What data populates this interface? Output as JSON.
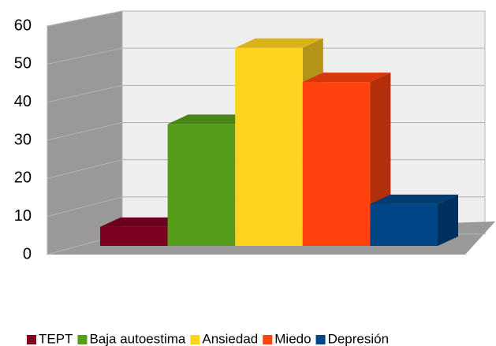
{
  "chart_data": {
    "type": "bar3d",
    "categories": [
      null
    ],
    "series": [
      {
        "name": "TEPT",
        "color": "#7e0021",
        "values": [
          5
        ]
      },
      {
        "name": "Baja autoestima",
        "color": "#579d1c",
        "values": [
          32
        ]
      },
      {
        "name": "Ansiedad",
        "color": "#ffd320",
        "values": [
          52
        ]
      },
      {
        "name": "Miedo",
        "color": "#ff420e",
        "values": [
          43
        ]
      },
      {
        "name": "Depresión",
        "color": "#004586",
        "values": [
          11
        ]
      }
    ],
    "ylim": [
      0,
      60
    ],
    "yticks": [
      0,
      10,
      20,
      30,
      40,
      50,
      60
    ],
    "grid": true,
    "legend": "bottom"
  }
}
